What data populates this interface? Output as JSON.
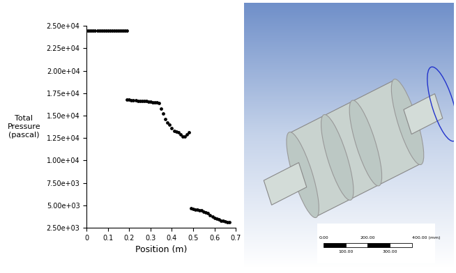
{
  "chart_data": {
    "type": "scatter",
    "xlabel": "Position (m)",
    "ylabel": "Total\nPressure\n(pascal)",
    "color": "#000000",
    "marker": "o",
    "x": [
      0.0,
      0.01,
      0.02,
      0.03,
      0.04,
      0.05,
      0.06,
      0.07,
      0.08,
      0.09,
      0.1,
      0.11,
      0.12,
      0.13,
      0.14,
      0.15,
      0.16,
      0.17,
      0.18,
      0.19,
      0.19,
      0.2,
      0.21,
      0.22,
      0.23,
      0.24,
      0.25,
      0.26,
      0.27,
      0.28,
      0.29,
      0.3,
      0.31,
      0.32,
      0.33,
      0.34,
      0.35,
      0.36,
      0.37,
      0.38,
      0.39,
      0.4,
      0.41,
      0.42,
      0.43,
      0.44,
      0.45,
      0.46,
      0.47,
      0.48,
      0.49,
      0.5,
      0.51,
      0.52,
      0.53,
      0.54,
      0.55,
      0.56,
      0.57,
      0.58,
      0.59,
      0.6,
      0.61,
      0.62,
      0.63,
      0.64,
      0.65,
      0.66,
      0.67
    ],
    "values": [
      24500,
      24500,
      24500,
      24500,
      24500,
      24500,
      24500,
      24500,
      24500,
      24500,
      24500,
      24500,
      24500,
      24500,
      24500,
      24500,
      24500,
      24500,
      24500,
      24500,
      16800,
      16750,
      16700,
      16700,
      16700,
      16650,
      16650,
      16600,
      16600,
      16600,
      16550,
      16550,
      16500,
      16500,
      16450,
      16400,
      15800,
      15200,
      14600,
      14200,
      14000,
      13600,
      13300,
      13200,
      13100,
      12900,
      12700,
      12700,
      12900,
      13100,
      4700,
      4600,
      4550,
      4500,
      4450,
      4400,
      4300,
      4200,
      4100,
      3900,
      3750,
      3600,
      3500,
      3400,
      3300,
      3250,
      3200,
      3150,
      3100
    ],
    "xlim": [
      0,
      0.7
    ],
    "xticks": [
      0,
      0.1,
      0.2,
      0.3,
      0.4,
      0.5,
      0.6,
      0.7
    ],
    "ylim": [
      2500,
      25000
    ],
    "yticks": [
      {
        "value": 2500,
        "label": "2.50e+03"
      },
      {
        "value": 5000,
        "label": "5.00e+03"
      },
      {
        "value": 7500,
        "label": "7.50e+03"
      },
      {
        "value": 10000,
        "label": "1.00e+04"
      },
      {
        "value": 12500,
        "label": "1.25e+04"
      },
      {
        "value": 15000,
        "label": "1.50e+04"
      },
      {
        "value": 17500,
        "label": "1.75e+04"
      },
      {
        "value": 20000,
        "label": "2.00e+04"
      },
      {
        "value": 22500,
        "label": "2.25e+04"
      },
      {
        "value": 25000,
        "label": "2.50e+04"
      }
    ],
    "grid": false
  },
  "cad_view": {
    "scale_bar": {
      "top_labels": [
        "0.00",
        "200.00",
        "400.00 (mm)"
      ],
      "bottom_labels": [
        "100.00",
        "300.00"
      ]
    }
  }
}
